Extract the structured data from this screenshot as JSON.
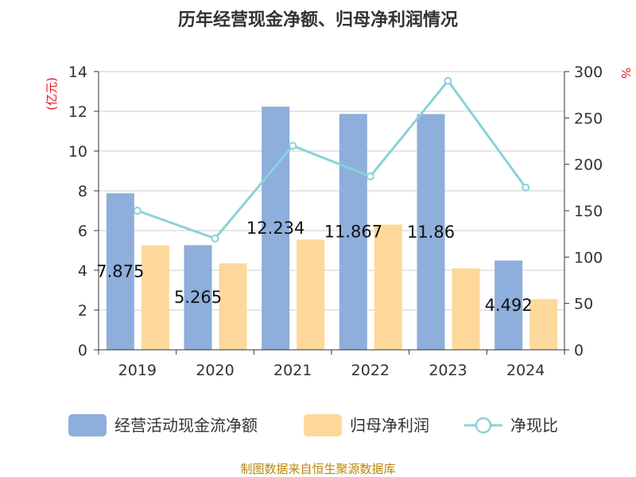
{
  "chart_data": {
    "type": "bar",
    "title": "历年经营现金净额、归母净利润情况",
    "categories": [
      "2019",
      "2020",
      "2021",
      "2022",
      "2023",
      "2024"
    ],
    "series": [
      {
        "name": "经营活动现金流净额",
        "type": "bar",
        "axis": "left",
        "color": "#8eaedb",
        "values": [
          7.875,
          5.265,
          12.234,
          11.867,
          11.86,
          4.492
        ],
        "labels": [
          "7.875",
          "5.265",
          "12.234",
          "11.867",
          "11.86",
          "4.492"
        ]
      },
      {
        "name": "归母净利润",
        "type": "bar",
        "axis": "left",
        "color": "#fdd89a",
        "values": [
          5.25,
          4.35,
          5.55,
          6.3,
          4.1,
          2.55
        ]
      },
      {
        "name": "净现比",
        "type": "line",
        "axis": "right",
        "color": "#88d3d8",
        "values": [
          150,
          120,
          220,
          187,
          290,
          175
        ]
      }
    ],
    "left_axis": {
      "unit": "(亿元)",
      "ylim": [
        0,
        14
      ],
      "ticks": [
        "0",
        "2",
        "4",
        "6",
        "8",
        "10",
        "12",
        "14"
      ]
    },
    "right_axis": {
      "unit": "%",
      "ylim": [
        0,
        300
      ],
      "ticks": [
        "0",
        "50",
        "100",
        "150",
        "200",
        "250",
        "300"
      ]
    },
    "grid": true,
    "legend_position": "bottom",
    "source": "制图数据来自恒生聚源数据库"
  }
}
